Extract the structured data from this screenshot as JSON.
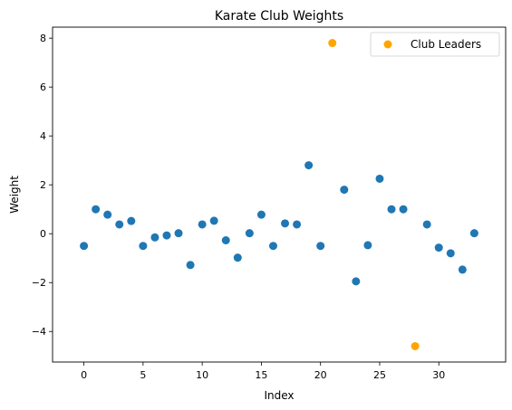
{
  "chart_data": {
    "type": "scatter",
    "title": "Karate Club Weights",
    "xlabel": "Index",
    "ylabel": "Weight",
    "xlim": [
      -2.65,
      35.65
    ],
    "ylim": [
      -5.25,
      8.45
    ],
    "xticks": [
      0,
      5,
      10,
      15,
      20,
      25,
      30
    ],
    "yticks": [
      -4,
      -2,
      0,
      2,
      4,
      6,
      8
    ],
    "xtick_labels": [
      "0",
      "5",
      "10",
      "15",
      "20",
      "25",
      "30"
    ],
    "ytick_labels": [
      "−4",
      "−2",
      "0",
      "2",
      "4",
      "6",
      "8"
    ],
    "grid": false,
    "legend_position": "top-right",
    "series": [
      {
        "color": "#1f77b4",
        "x": [
          0,
          1,
          2,
          3,
          4,
          5,
          6,
          7,
          8,
          9,
          10,
          11,
          12,
          13,
          14,
          15,
          16,
          17,
          18,
          19,
          20,
          22,
          23,
          24,
          25,
          26,
          27,
          29,
          30,
          31,
          32,
          33
        ],
        "y": [
          -0.5,
          1.0,
          0.78,
          0.38,
          0.52,
          -0.5,
          -0.15,
          -0.07,
          0.02,
          -1.28,
          0.38,
          0.53,
          -0.27,
          -0.98,
          0.02,
          0.78,
          -0.5,
          0.42,
          0.38,
          2.8,
          -0.5,
          1.8,
          -1.95,
          -0.47,
          2.25,
          1.0,
          1.0,
          0.38,
          -0.57,
          -0.8,
          -1.47,
          0.02
        ]
      },
      {
        "name": "Club Leaders",
        "color": "#ffa500",
        "x": [
          21,
          28
        ],
        "y": [
          7.8,
          -4.6
        ]
      }
    ]
  }
}
